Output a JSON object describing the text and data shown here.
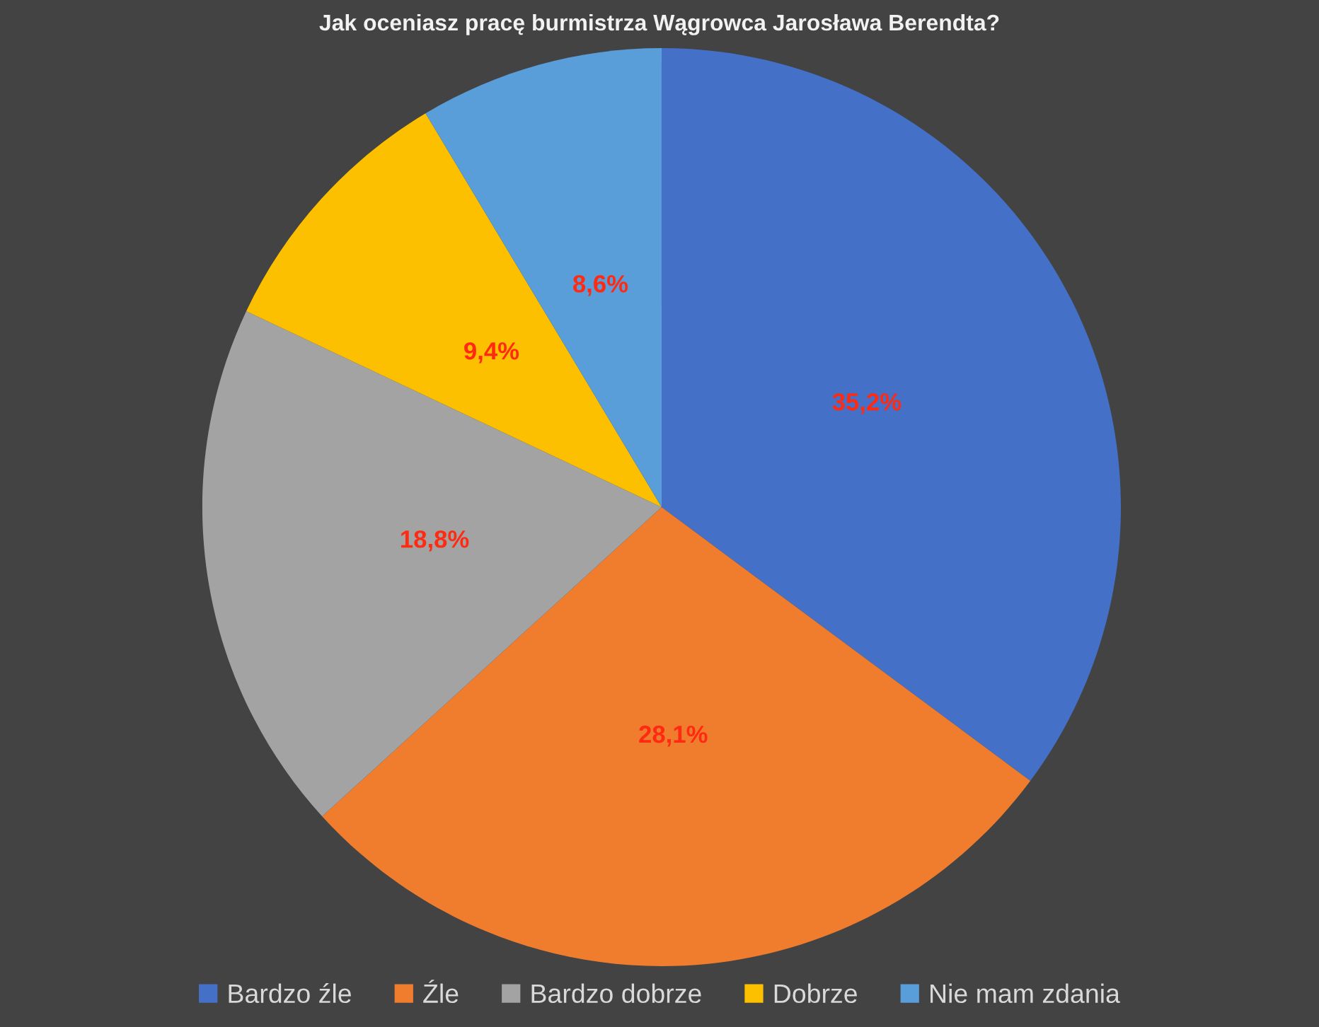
{
  "chart_data": {
    "type": "pie",
    "title": "Jak oceniasz pracę burmistrza Wągrowca Jarosława Berendta?",
    "categories": [
      "Bardzo źle",
      "Źle",
      "Bardzo dobrze",
      "Dobrze",
      "Nie mam zdania"
    ],
    "values": [
      35.2,
      28.1,
      18.8,
      9.4,
      8.6
    ],
    "colors": [
      "#4470c8",
      "#f07c2e",
      "#a3a3a3",
      "#fcc000",
      "#599dd9"
    ],
    "value_labels": [
      "35,2%",
      "28,1%",
      "18,8%",
      "9,4%",
      "8,6%"
    ],
    "legend": "bottom"
  }
}
